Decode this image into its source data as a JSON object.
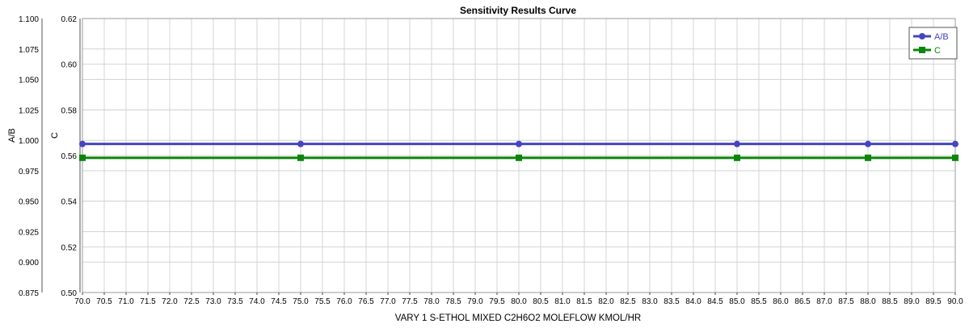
{
  "chart_data": {
    "type": "line",
    "title": "Sensitivity Results Curve",
    "xlabel": "VARY   1 S-ETHOL MIXED C2H6O2 MOLEFLOW KMOL/HR",
    "xlim": [
      70.0,
      90.0
    ],
    "x_ticks": [
      "70.0",
      "70.5",
      "71.0",
      "71.5",
      "72.0",
      "72.5",
      "73.0",
      "73.5",
      "74.0",
      "74.5",
      "75.0",
      "75.5",
      "76.0",
      "76.5",
      "77.0",
      "77.5",
      "78.0",
      "78.5",
      "79.0",
      "79.5",
      "80.0",
      "80.5",
      "81.0",
      "81.5",
      "82.0",
      "82.5",
      "83.0",
      "83.5",
      "84.0",
      "84.5",
      "85.0",
      "85.5",
      "86.0",
      "86.5",
      "87.0",
      "87.5",
      "88.0",
      "88.5",
      "89.0",
      "89.5",
      "90.0"
    ],
    "x": [
      70.0,
      75.0,
      80.0,
      85.0,
      88.0,
      90.0
    ],
    "y_axes": [
      {
        "label": "A/B",
        "ylim": [
          0.875,
          1.1
        ],
        "ticks": [
          "1.100",
          "1.075",
          "1.050",
          "1.025",
          "1.000",
          "0.975",
          "0.950",
          "0.925",
          "0.900",
          "0.875"
        ]
      },
      {
        "label": "C",
        "ylim": [
          0.5,
          0.62
        ],
        "ticks": [
          "0.62",
          "0.60",
          "0.58",
          "0.56",
          "0.54",
          "0.52",
          "0.50"
        ]
      }
    ],
    "series": [
      {
        "name": "A/B",
        "axis": 0,
        "color": "#4444c4",
        "marker": "circle",
        "values": [
          0.997,
          0.997,
          0.997,
          0.997,
          0.997,
          0.997
        ]
      },
      {
        "name": "C",
        "axis": 1,
        "color": "#0b860b",
        "marker": "square",
        "values": [
          0.559,
          0.559,
          0.559,
          0.559,
          0.559,
          0.559
        ]
      }
    ],
    "grid": true,
    "legend": "top-right"
  }
}
